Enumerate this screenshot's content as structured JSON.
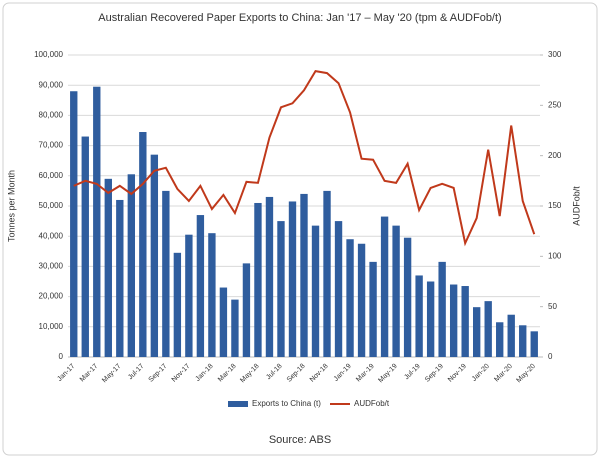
{
  "chart_data": {
    "type": "bar_line",
    "title": "Australian Recovered Paper Exports to China: Jan '17 – May '20 (tpm & AUDFob/t)",
    "source": "Source: ABS",
    "ylabel": "Tonnes per Month",
    "y2label": "AUDFob/t",
    "categories": [
      "Jan-17",
      null,
      "Mar-17",
      null,
      "May-17",
      null,
      "Jul-17",
      null,
      "Sep-17",
      null,
      "Nov-17",
      null,
      "Jan-18",
      null,
      "Mar-18",
      null,
      "May-18",
      null,
      "Jul-18",
      null,
      "Sep-18",
      null,
      "Nov-18",
      null,
      "Jan-19",
      null,
      "Mar-19",
      null,
      "May-19",
      null,
      "Jul-19",
      null,
      "Sep-19",
      null,
      "Nov-19",
      null,
      "Jan-20",
      null,
      "Mar-20",
      null,
      "May-20"
    ],
    "series": [
      {
        "name": "Exports to China (t)",
        "type": "bar",
        "color": "#2f5d9e",
        "axis": "y",
        "values": [
          88000,
          73000,
          89500,
          59000,
          52000,
          60500,
          74500,
          67000,
          55000,
          34500,
          40500,
          47000,
          41000,
          23000,
          19000,
          31000,
          51000,
          53000,
          45000,
          51500,
          54000,
          43500,
          55000,
          45000,
          39000,
          37500,
          31500,
          46500,
          43500,
          39500,
          27000,
          25000,
          31500,
          24000,
          23500,
          16500,
          18500,
          11500,
          14000,
          10500,
          8500
        ]
      },
      {
        "name": "AUDFob/t",
        "type": "line",
        "color": "#c0391b",
        "axis": "y2",
        "values": [
          170,
          175,
          172,
          163,
          170,
          162,
          172,
          185,
          188,
          167,
          155,
          170,
          147,
          161,
          143,
          174,
          173,
          218,
          248,
          252,
          265,
          284,
          282,
          272,
          243,
          197,
          196,
          175,
          173,
          192,
          146,
          168,
          172,
          168,
          113,
          138,
          206,
          140,
          230,
          155,
          122
        ]
      }
    ],
    "ylim": [
      0,
      100000
    ],
    "yticks": [
      0,
      {
        "value": 10000,
        "label": "10,000"
      },
      {
        "value": 20000,
        "label": "20,000"
      },
      {
        "value": 30000,
        "label": "30,000"
      },
      {
        "value": 40000,
        "label": "40,000"
      },
      {
        "value": 50000,
        "label": "50,000"
      },
      {
        "value": 60000,
        "label": "60,000"
      },
      {
        "value": 70000,
        "label": "70,000"
      },
      {
        "value": 80000,
        "label": "80,000"
      },
      {
        "value": 90000,
        "label": "90,000"
      },
      {
        "value": 100000,
        "label": "100,000"
      }
    ],
    "y2lim": [
      0,
      300
    ],
    "y2ticks": [
      0,
      50,
      100,
      150,
      200,
      250,
      300
    ],
    "grid": true,
    "legend": "bottom"
  }
}
